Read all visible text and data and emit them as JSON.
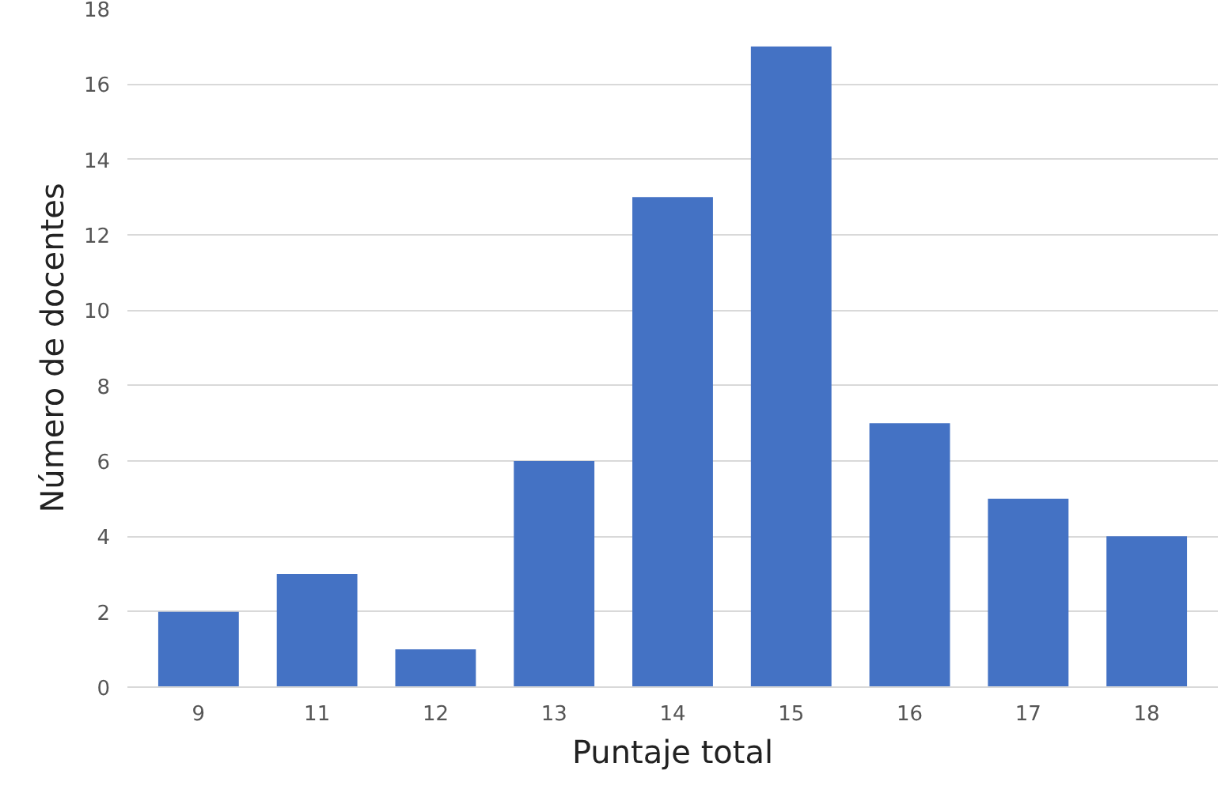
{
  "chart_data": {
    "type": "bar",
    "xlabel": "Puntaje total",
    "ylabel": "Número de docentes",
    "categories": [
      "9",
      "11",
      "12",
      "13",
      "14",
      "15",
      "16",
      "17",
      "18"
    ],
    "values": [
      2,
      3,
      1,
      6,
      13,
      17,
      7,
      5,
      4
    ],
    "color": "#4472c4",
    "ylim": [
      0,
      18
    ],
    "yticks": [
      0,
      2,
      4,
      6,
      8,
      10,
      12,
      14,
      16,
      18
    ],
    "grid": "y"
  }
}
